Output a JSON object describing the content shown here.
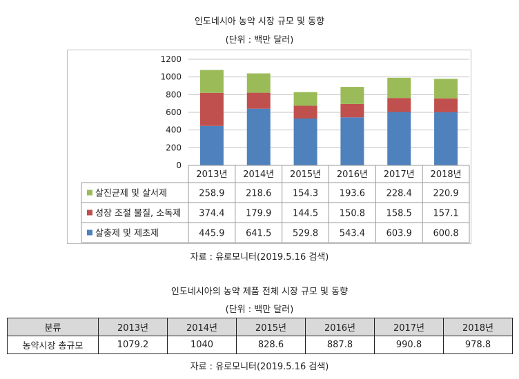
{
  "chart_title": "인도네시아 농약 시장 규모 및 동향",
  "chart_unit": "(단위 : 백만 달러)",
  "chart_source": "자료 : 유로모니터(2019.5.16 검색)",
  "chart_data": {
    "type": "bar",
    "stacked": true,
    "categories": [
      "2013년",
      "2014년",
      "2015년",
      "2016년",
      "2017년",
      "2018년"
    ],
    "series": [
      {
        "name": "살충제 및 제초제",
        "color": "#4f81bd",
        "values": [
          445.9,
          641.5,
          529.8,
          543.4,
          603.9,
          600.8
        ],
        "labels": [
          "445.9",
          "641.5",
          "529.8",
          "543.4",
          "603.9",
          "600.8"
        ]
      },
      {
        "name": "성장 조절 물질, 소독제",
        "color": "#c0504d",
        "values": [
          374.4,
          179.9,
          144.5,
          150.8,
          158.5,
          157.1
        ],
        "labels": [
          "374.4",
          "179.9",
          "144.5",
          "150.8",
          "158.5",
          "157.1"
        ]
      },
      {
        "name": "살진균제 및 살서제",
        "color": "#9bbb59",
        "values": [
          258.9,
          218.6,
          154.3,
          193.6,
          228.4,
          220.9
        ],
        "labels": [
          "258.9",
          "218.6",
          "154.3",
          "193.6",
          "228.4",
          "220.9"
        ]
      }
    ],
    "ylim": [
      0,
      1200
    ],
    "yticks": [
      "0",
      "200",
      "400",
      "600",
      "800",
      "1000",
      "1200"
    ],
    "grid": true,
    "legend": "data-table-rows"
  },
  "table": {
    "title": "인도네시아의 농약 제품 전체 시장 규모 및 동향",
    "unit": "(단위 : 백만 달러)",
    "header_label": "분류",
    "years": [
      "2013년",
      "2014년",
      "2015년",
      "2016년",
      "2017년",
      "2018년"
    ],
    "row_label": "농약시장 총규모",
    "values": [
      "1079.2",
      "1040",
      "828.6",
      "887.8",
      "990.8",
      "978.8"
    ],
    "header_bg": "#d9d9d9",
    "source": "자료 : 유로모니터(2019.5.16 검색)"
  }
}
